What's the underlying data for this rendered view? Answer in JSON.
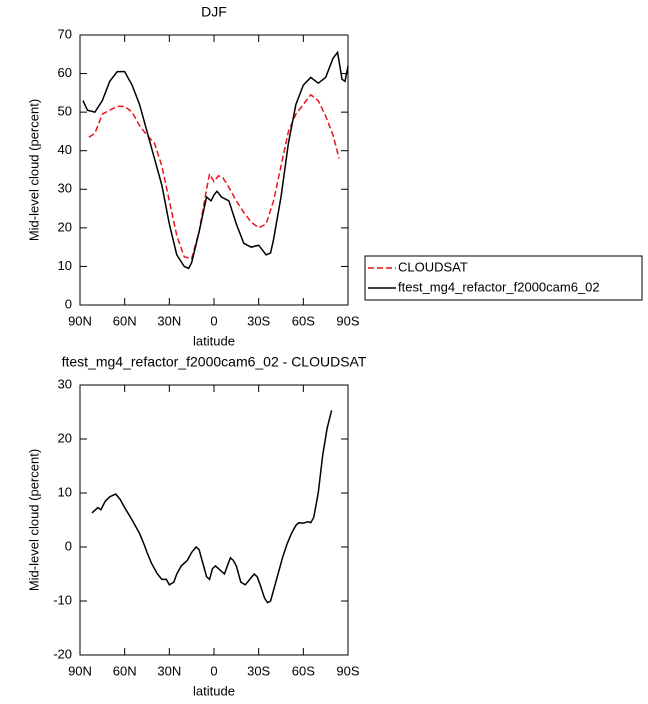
{
  "chart_data": [
    {
      "type": "line",
      "title": "DJF",
      "xlabel": "latitude",
      "ylabel": "Mid-level cloud (percent)",
      "xlim": [
        90,
        -90
      ],
      "ylim": [
        0,
        70
      ],
      "xticks": [
        {
          "value": 90,
          "label": "90N"
        },
        {
          "value": 60,
          "label": "60N"
        },
        {
          "value": 30,
          "label": "30N"
        },
        0,
        {
          "value": -30,
          "label": "30S"
        },
        {
          "value": -60,
          "label": "60S"
        },
        {
          "value": -90,
          "label": "90S"
        }
      ],
      "yticks": [
        0,
        10,
        20,
        30,
        40,
        50,
        60,
        70
      ],
      "legend": "outside-right",
      "series": [
        {
          "name": "CLOUDSAT",
          "color": "#e8141e",
          "line_style": "dashed",
          "x": [
            84,
            80,
            75,
            70,
            65,
            60,
            55,
            50,
            45,
            40,
            35,
            30,
            25,
            20,
            15,
            10,
            5,
            3,
            0,
            -3,
            -6,
            -10,
            -15,
            -20,
            -25,
            -30,
            -35,
            -40,
            -45,
            -50,
            -55,
            -60,
            -65,
            -70,
            -75,
            -80,
            -84
          ],
          "values": [
            43.5,
            44.5,
            49.5,
            50.5,
            51.5,
            51.5,
            50,
            46.5,
            44,
            42,
            36,
            27,
            18,
            12.5,
            12,
            19,
            30,
            34,
            32,
            33.5,
            33,
            30.5,
            27,
            24,
            21.5,
            20,
            21,
            27,
            36,
            45,
            49.5,
            52,
            54.5,
            53,
            49,
            44,
            38
          ]
        },
        {
          "name": "ftest_mg4_refactor_f2000cam6_02",
          "color": "#000000",
          "line_style": "solid",
          "x": [
            88,
            85,
            80,
            75,
            70,
            65,
            60,
            55,
            50,
            45,
            40,
            35,
            30,
            25,
            20,
            17,
            15,
            10,
            5,
            2,
            0,
            -2,
            -5,
            -10,
            -15,
            -20,
            -25,
            -30,
            -35,
            -38,
            -40,
            -45,
            -50,
            -55,
            -60,
            -65,
            -70,
            -75,
            -80,
            -83,
            -86,
            -88,
            -90
          ],
          "values": [
            53,
            50.5,
            50,
            53,
            58,
            60.5,
            60.5,
            57,
            52,
            45,
            38,
            31,
            21,
            13,
            10,
            9.5,
            11,
            19,
            28,
            27,
            28.5,
            29.5,
            28,
            27,
            21,
            16,
            15,
            15.5,
            13,
            13.5,
            17,
            28,
            42,
            52,
            57,
            59,
            57.5,
            59,
            64,
            65.5,
            58.5,
            58,
            62
          ]
        }
      ]
    },
    {
      "type": "line",
      "title": "ftest_mg4_refactor_f2000cam6_02 - CLOUDSAT",
      "xlabel": "latitude",
      "ylabel": "Mid-level cloud (percent)",
      "xlim": [
        90,
        -90
      ],
      "ylim": [
        -20,
        30
      ],
      "xticks": [
        {
          "value": 90,
          "label": "90N"
        },
        {
          "value": 60,
          "label": "60N"
        },
        {
          "value": 30,
          "label": "30N"
        },
        0,
        {
          "value": -30,
          "label": "30S"
        },
        {
          "value": -60,
          "label": "60S"
        },
        {
          "value": -90,
          "label": "90S"
        }
      ],
      "yticks": [
        -20,
        -10,
        0,
        10,
        20,
        30
      ],
      "series": [
        {
          "color": "#000000",
          "line_style": "solid",
          "x": [
            82,
            80,
            78,
            76,
            73,
            70,
            66,
            63,
            60,
            55,
            50,
            47,
            45,
            42,
            38,
            35,
            32,
            30,
            27,
            25,
            22,
            18,
            15,
            12,
            10,
            8,
            5,
            3,
            1,
            -1,
            -3,
            -5,
            -7,
            -9,
            -11,
            -13,
            -15,
            -18,
            -21,
            -24,
            -27,
            -29,
            -31,
            -34,
            -36,
            -38,
            -40,
            -43,
            -46,
            -49,
            -52,
            -55,
            -57,
            -60,
            -63,
            -65,
            -67,
            -70,
            -73,
            -76,
            -79
          ],
          "values": [
            6.3,
            6.8,
            7.3,
            6.9,
            8.5,
            9.3,
            9.8,
            8.8,
            7.3,
            5,
            2.5,
            0.5,
            -1,
            -3,
            -5,
            -6,
            -6,
            -7,
            -6.5,
            -5,
            -3.5,
            -2.5,
            -1,
            0,
            -0.5,
            -2.5,
            -5.5,
            -6,
            -4,
            -3.5,
            -4,
            -4.5,
            -5,
            -3.5,
            -2,
            -2.5,
            -3.5,
            -6.5,
            -7,
            -6,
            -5,
            -5.5,
            -7,
            -9.5,
            -10.3,
            -10,
            -8,
            -5,
            -2,
            0.5,
            2.5,
            4,
            4.5,
            4.4,
            4.7,
            4.5,
            5.5,
            10,
            17,
            22,
            25.3
          ]
        }
      ]
    }
  ]
}
